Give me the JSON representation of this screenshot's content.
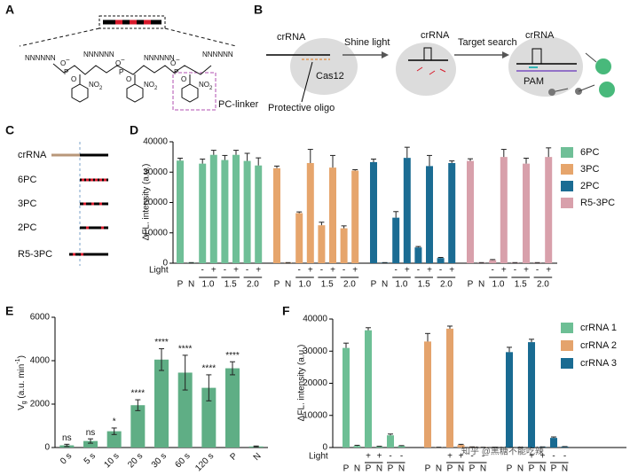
{
  "panel_a": {
    "letter": "A",
    "strands": [
      "NNNNNN",
      "NNNNNN",
      "NNNNNN",
      "NNNNNN"
    ],
    "oxygen": "O",
    "charge": "−",
    "phosphorus": "P",
    "nitro": [
      "NO",
      "2"
    ],
    "linker_label": "PC-linker"
  },
  "panel_b": {
    "letter": "B",
    "crrna_1": "crRNA",
    "cas12": "Cas12",
    "protective_oligo": "Protective oligo",
    "step_1": "Shine light",
    "crrna_2": "crRNA",
    "step_2": "Target search",
    "crrna_3": "crRNA",
    "pam": "PAM"
  },
  "panel_c": {
    "letter": "C",
    "rows": [
      "crRNA",
      "6PC",
      "3PC",
      "2PC",
      "R5-3PC"
    ]
  },
  "watermark": "知乎 @黑糖不能吃辣",
  "chart_data": [
    {
      "type": "bar",
      "panel": "D",
      "y_label": "ΔFL. intensity (a.u.)",
      "ylim": [
        0,
        40000
      ],
      "yticks": [
        0,
        10000,
        20000,
        30000,
        40000
      ],
      "light_label": "Light",
      "categories": [
        "P",
        "N",
        "-",
        "+",
        "-",
        "+",
        "-",
        "+"
      ],
      "doses": [
        "1.0",
        "1.5",
        "2.0"
      ],
      "series": [
        {
          "name": "6PC",
          "color": "#6fbf97",
          "values": [
            33800,
            200,
            32800,
            35700,
            34000,
            35700,
            33700,
            32200
          ],
          "errors": [
            800,
            0,
            1500,
            1500,
            1500,
            1500,
            2500,
            2500
          ]
        },
        {
          "name": "3PC",
          "color": "#e6a56c",
          "values": [
            31300,
            200,
            16500,
            33000,
            12500,
            31500,
            11500,
            30500
          ],
          "errors": [
            700,
            0,
            400,
            4500,
            1000,
            4000,
            800,
            300
          ]
        },
        {
          "name": "2PC",
          "color": "#1b6c93",
          "values": [
            33300,
            200,
            15000,
            34700,
            5200,
            32000,
            1700,
            33000
          ],
          "errors": [
            1000,
            0,
            2000,
            3500,
            300,
            3500,
            200,
            700
          ]
        },
        {
          "name": "R5-3PC",
          "color": "#d8a0ab",
          "values": [
            33700,
            200,
            1000,
            35000,
            200,
            32800,
            200,
            35000
          ],
          "errors": [
            700,
            0,
            200,
            2500,
            0,
            1800,
            0,
            3000
          ]
        }
      ]
    },
    {
      "type": "bar",
      "panel": "E",
      "y_label": [
        "V",
        "g",
        " (a.u. min",
        "-1",
        ")"
      ],
      "ylim": [
        0,
        6000
      ],
      "yticks": [
        0,
        2000,
        4000,
        6000
      ],
      "categories": [
        "0 s",
        "5 s",
        "10 s",
        "20 s",
        "30 s",
        "60 s",
        "120 s",
        "P",
        "N"
      ],
      "color": "#5fae85",
      "values": [
        100,
        300,
        750,
        1950,
        4050,
        3450,
        2750,
        3650,
        50
      ],
      "errors": [
        50,
        100,
        150,
        250,
        500,
        800,
        600,
        300,
        20
      ],
      "significance": [
        "ns",
        "ns",
        "*",
        "****",
        "****",
        "****",
        "****",
        "****",
        null
      ]
    },
    {
      "type": "bar",
      "panel": "F",
      "y_label": "ΔFL. intensity (a.u.)",
      "ylim": [
        0,
        40000
      ],
      "yticks": [
        0,
        10000,
        20000,
        30000,
        40000
      ],
      "light_label": "Light",
      "categories": [
        "P",
        "N",
        "P",
        "N",
        "P",
        "N"
      ],
      "light": [
        null,
        null,
        "+",
        "+",
        "-",
        "-"
      ],
      "series": [
        {
          "name": "crRNA 1",
          "color": "#6dbf95",
          "values": [
            31000,
            500,
            36500,
            300,
            3800,
            500
          ],
          "errors": [
            1500,
            200,
            800,
            100,
            400,
            100
          ]
        },
        {
          "name": "crRNA 2",
          "color": "#e4a36c",
          "values": [
            33000,
            100,
            37000,
            800,
            200,
            100
          ],
          "errors": [
            2500,
            0,
            800,
            200,
            0,
            0
          ]
        },
        {
          "name": "crRNA 3",
          "color": "#196b92",
          "values": [
            29700,
            100,
            32800,
            200,
            3000,
            300
          ],
          "errors": [
            1500,
            0,
            900,
            0,
            300,
            0
          ]
        }
      ]
    }
  ]
}
